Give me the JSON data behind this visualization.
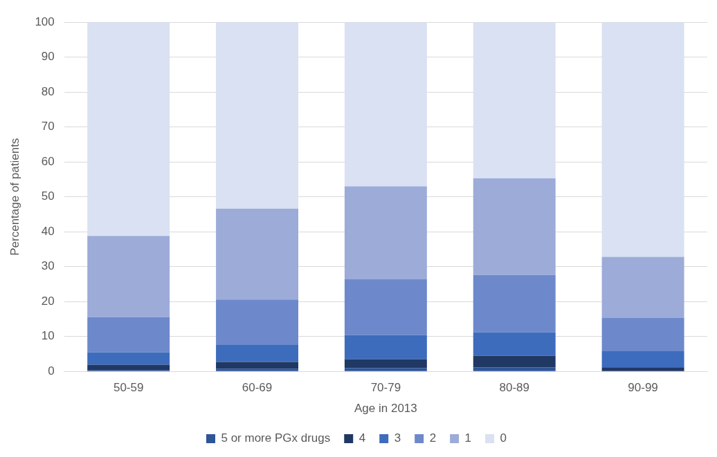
{
  "chart_data": {
    "type": "bar",
    "stacked": true,
    "xlabel": "Age in 2013",
    "ylabel": "Percentage of patients",
    "categories": [
      "50-59",
      "60-69",
      "70-79",
      "80-89",
      "90-99"
    ],
    "series": [
      {
        "name": "5 or more PGx drugs",
        "color": "#2f5597",
        "values": [
          0.3,
          0.8,
          1.0,
          1.2,
          0
        ]
      },
      {
        "name": "4",
        "color": "#203864",
        "values": [
          1.6,
          1.9,
          2.5,
          3.3,
          1.2
        ]
      },
      {
        "name": "3",
        "color": "#3d6cbd",
        "values": [
          3.6,
          5.0,
          6.9,
          6.7,
          4.6
        ]
      },
      {
        "name": "2",
        "color": "#6d89cb",
        "values": [
          10.1,
          12.9,
          16.0,
          16.4,
          9.5
        ]
      },
      {
        "name": "1",
        "color": "#9dabd8",
        "values": [
          23.2,
          26.0,
          26.6,
          27.7,
          17.5
        ]
      },
      {
        "name": "0",
        "color": "#d9e1f2",
        "values": [
          61.2,
          53.4,
          47.0,
          44.7,
          67.2
        ]
      }
    ],
    "ylim": [
      0,
      100
    ],
    "yticks": [
      0,
      10,
      20,
      30,
      40,
      50,
      60,
      70,
      80,
      90,
      100
    ],
    "grid": "y",
    "legend": "bottom"
  }
}
